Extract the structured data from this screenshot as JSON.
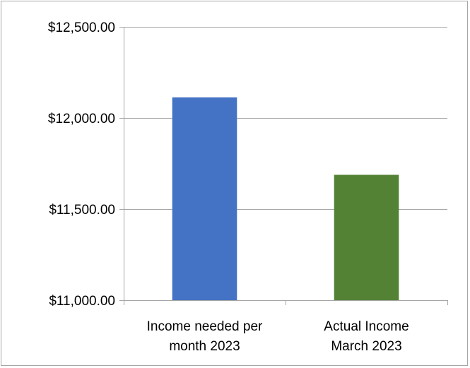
{
  "chart_data": {
    "type": "bar",
    "title": "",
    "xlabel": "",
    "ylabel": "",
    "categories": [
      [
        "Income needed per",
        "month 2023"
      ],
      [
        "Actual Income",
        "March 2023"
      ]
    ],
    "values": [
      12113,
      11688
    ],
    "colors": [
      "#4472c4",
      "#548235"
    ],
    "ylim": [
      11000,
      12500
    ],
    "yticks": [
      11000,
      11500,
      12000,
      12500
    ],
    "ytick_labels": [
      "$11,000.00",
      "$11,500.00",
      "$12,000.00",
      "$12,500.00"
    ],
    "grid": true,
    "legend": "none"
  }
}
